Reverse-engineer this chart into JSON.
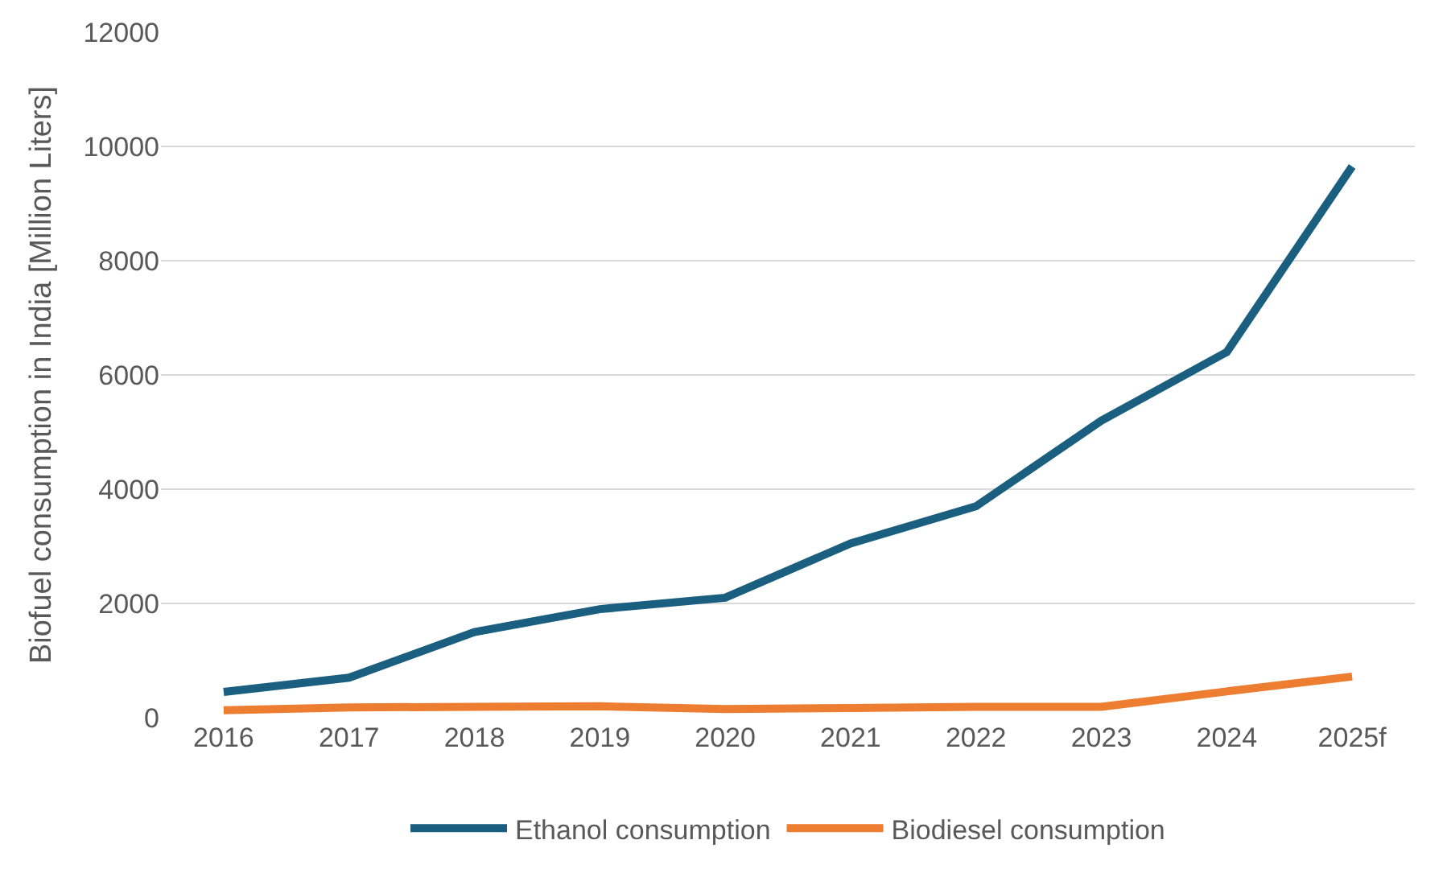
{
  "chart_data": {
    "type": "line",
    "ylabel": "Biofuel consumption in India [Million Liters]",
    "categories": [
      "2016",
      "2017",
      "2018",
      "2019",
      "2020",
      "2021",
      "2022",
      "2023",
      "2024",
      "2025f"
    ],
    "series": [
      {
        "name": "Ethanol consumption",
        "color": "#1a5f7f",
        "values": [
          450,
          700,
          1500,
          1900,
          2100,
          3050,
          3700,
          5200,
          6400,
          9650
        ]
      },
      {
        "name": "Biodiesel consumption",
        "color": "#ed7d31",
        "values": [
          130,
          180,
          190,
          200,
          150,
          170,
          190,
          190,
          460,
          720
        ]
      }
    ],
    "ylim": [
      0,
      12000
    ],
    "yticks": [
      0,
      2000,
      4000,
      6000,
      8000,
      10000,
      12000
    ],
    "grid": "y",
    "legend": "bottom",
    "marker": "none",
    "line_style": "solid"
  }
}
